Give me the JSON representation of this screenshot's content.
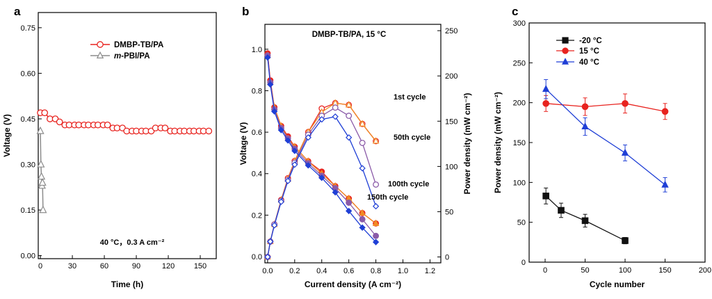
{
  "chart_data": [
    {
      "panel": "a",
      "type": "line",
      "xlabel": "Time (h)",
      "ylabel": "Voltage (V)",
      "xlim": [
        -2,
        165
      ],
      "ylim": [
        -0.01,
        0.8
      ],
      "xticks": [
        0,
        30,
        60,
        90,
        120,
        150
      ],
      "yticks": [
        0.0,
        0.15,
        0.3,
        0.45,
        0.6,
        0.75
      ],
      "annotation": "40 °C，0.3 A cm⁻²",
      "legend_position": "top-center",
      "series": [
        {
          "name_parts": [
            "DMBP-TB/PA"
          ],
          "color": "#e8231f",
          "marker": "circle-open",
          "x": [
            0,
            4,
            9,
            14,
            18,
            23,
            27,
            32,
            36,
            41,
            45,
            50,
            54,
            59,
            63,
            68,
            72,
            77,
            81,
            86,
            90,
            95,
            99,
            104,
            108,
            113,
            117,
            122,
            126,
            131,
            135,
            140,
            144,
            149,
            153,
            158
          ],
          "y": [
            0.47,
            0.47,
            0.45,
            0.45,
            0.44,
            0.43,
            0.43,
            0.43,
            0.43,
            0.43,
            0.43,
            0.43,
            0.43,
            0.43,
            0.43,
            0.42,
            0.42,
            0.42,
            0.41,
            0.41,
            0.41,
            0.41,
            0.41,
            0.41,
            0.42,
            0.42,
            0.42,
            0.41,
            0.41,
            0.41,
            0.41,
            0.41,
            0.41,
            0.41,
            0.41,
            0.41
          ]
        },
        {
          "name_parts": [
            "m",
            "-PBI/PA"
          ],
          "color": "#8c8c8c",
          "marker": "triangle-open",
          "x": [
            0,
            0.5,
            1,
            1.5,
            2,
            2.5
          ],
          "y": [
            0.41,
            0.3,
            0.26,
            0.23,
            0.24,
            0.15
          ]
        }
      ]
    },
    {
      "panel": "b",
      "type": "line",
      "title": "DMBP-TB/PA, 15 °C",
      "xlabel": "Current density (A cm⁻²)",
      "ylabel": "Voltage (V)",
      "y2label": "Power density (mW cm⁻²)",
      "xlim": [
        -0.02,
        1.28
      ],
      "ylim": [
        -0.03,
        1.12
      ],
      "y2lim": [
        -6.5,
        257
      ],
      "xticks": [
        0.0,
        0.2,
        0.4,
        0.6,
        0.8,
        1.0,
        1.2
      ],
      "yticks": [
        0.0,
        0.2,
        0.4,
        0.6,
        0.8,
        1.0
      ],
      "y2ticks": [
        0,
        50,
        100,
        150,
        200,
        250
      ],
      "labels": [
        "1st cycle",
        "50th cycle",
        "100th cycle",
        "150th cycle"
      ],
      "series": [
        {
          "name": "1st cycle",
          "color": "#e8231f",
          "x": [
            0,
            0.02,
            0.05,
            0.1,
            0.15,
            0.2,
            0.3,
            0.4,
            0.5,
            0.6,
            0.7,
            0.8
          ],
          "voltage": [
            0.98,
            0.85,
            0.72,
            0.63,
            0.58,
            0.53,
            0.46,
            0.41,
            0.34,
            0.28,
            0.21,
            0.16
          ],
          "power": [
            0,
            17,
            36,
            63,
            87,
            106,
            138,
            164,
            170,
            168,
            147,
            128
          ]
        },
        {
          "name": "50th cycle",
          "color": "#f08a25",
          "x": [
            0,
            0.02,
            0.05,
            0.1,
            0.15,
            0.2,
            0.3,
            0.4,
            0.5,
            0.6,
            0.7,
            0.8
          ],
          "voltage": [
            0.97,
            0.84,
            0.72,
            0.63,
            0.57,
            0.53,
            0.46,
            0.4,
            0.34,
            0.28,
            0.21,
            0.16
          ],
          "power": [
            0,
            17,
            36,
            63,
            86,
            106,
            138,
            160,
            170,
            168,
            147,
            128
          ]
        },
        {
          "name": "100th cycle",
          "color": "#8a5aa8",
          "x": [
            0,
            0.02,
            0.05,
            0.1,
            0.15,
            0.2,
            0.3,
            0.4,
            0.5,
            0.6,
            0.7,
            0.8
          ],
          "voltage": [
            0.97,
            0.84,
            0.71,
            0.62,
            0.57,
            0.52,
            0.45,
            0.39,
            0.33,
            0.26,
            0.18,
            0.1
          ],
          "power": [
            0,
            17,
            36,
            62,
            85,
            104,
            135,
            156,
            165,
            156,
            126,
            80
          ]
        },
        {
          "name": "150th cycle",
          "color": "#1f3fd6",
          "x": [
            0,
            0.02,
            0.05,
            0.1,
            0.15,
            0.2,
            0.3,
            0.4,
            0.5,
            0.6,
            0.7,
            0.8
          ],
          "voltage": [
            0.96,
            0.83,
            0.7,
            0.61,
            0.56,
            0.51,
            0.44,
            0.38,
            0.31,
            0.22,
            0.14,
            0.07
          ],
          "power": [
            0,
            17,
            35,
            61,
            84,
            102,
            132,
            152,
            155,
            132,
            98,
            56
          ]
        }
      ]
    },
    {
      "panel": "c",
      "type": "line",
      "xlabel": "Cycle number",
      "ylabel": "Power density (mW cm⁻²)",
      "xlim": [
        -20,
        200
      ],
      "ylim": [
        0,
        300
      ],
      "xticks": [
        0,
        50,
        100,
        150,
        200
      ],
      "yticks": [
        0,
        50,
        100,
        150,
        200,
        250,
        300
      ],
      "legend_position": "top-left",
      "series": [
        {
          "name": "-20 °C",
          "color": "#111111",
          "marker": "square",
          "x": [
            1,
            20,
            50,
            100
          ],
          "y": [
            83,
            65,
            52,
            27
          ],
          "err": [
            10,
            9,
            8,
            4
          ]
        },
        {
          "name": "15 °C",
          "color": "#e8231f",
          "marker": "circle",
          "x": [
            1,
            50,
            100,
            150
          ],
          "y": [
            199,
            195,
            199,
            189
          ],
          "err": [
            10,
            11,
            12,
            10
          ]
        },
        {
          "name": "40 °C",
          "color": "#1f3fd6",
          "marker": "triangle",
          "x": [
            1,
            50,
            100,
            150
          ],
          "y": [
            217,
            170,
            137,
            97
          ],
          "err": [
            12,
            11,
            10,
            9
          ]
        }
      ]
    }
  ]
}
